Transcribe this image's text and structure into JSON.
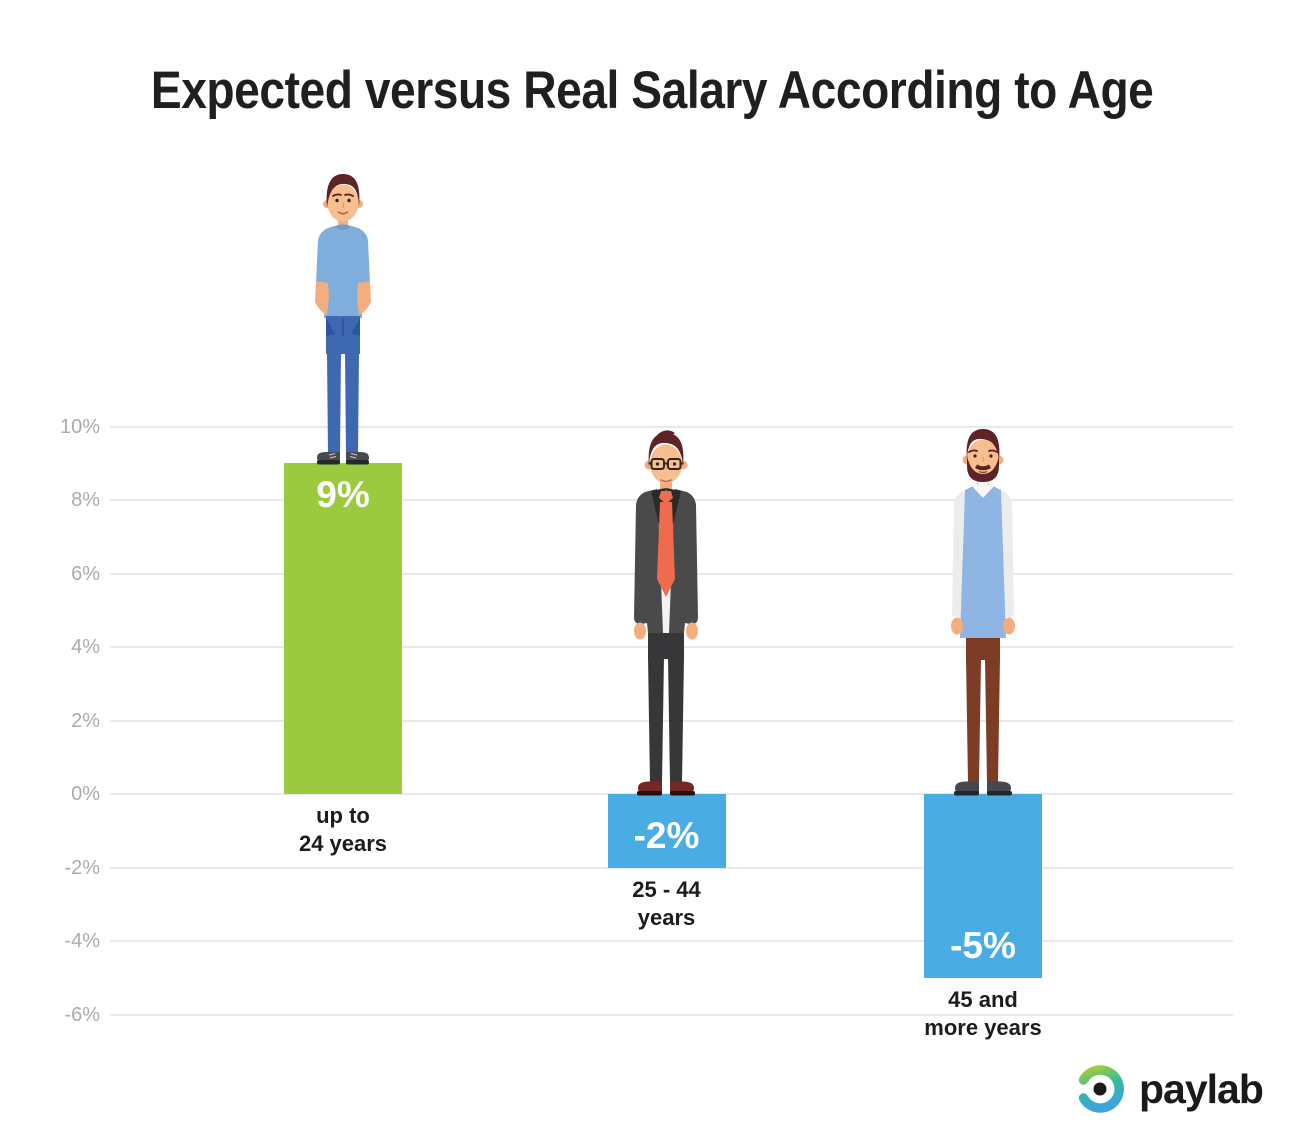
{
  "title": "Expected versus Real Salary According to Age",
  "chart_data": {
    "type": "bar",
    "title": "Expected versus Real Salary According to Age",
    "categories": [
      "up to 24 years",
      "25 - 44 years",
      "45 and more years"
    ],
    "category_lines": [
      [
        "up to",
        "24 years"
      ],
      [
        "25 - 44",
        "years"
      ],
      [
        "45 and",
        "more years"
      ]
    ],
    "values": [
      9,
      -2,
      -5
    ],
    "value_labels": [
      "9%",
      "-2%",
      "-5%"
    ],
    "unit": "%",
    "bar_colors": [
      "#9BCA3E",
      "#49ACE2",
      "#49ACE2"
    ],
    "yticks": [
      10,
      8,
      6,
      4,
      2,
      0,
      -2,
      -4,
      -6
    ],
    "ytick_labels": [
      "10%",
      "8%",
      "6%",
      "4%",
      "2%",
      "0%",
      "-2%",
      "-4%",
      "-6%"
    ],
    "ylim": [
      -7,
      11
    ],
    "grid": true,
    "legend": false
  },
  "illustrations": [
    {
      "name": "young-man-casual",
      "description": "young man in light blue t-shirt and jeans, hands in pockets, standing on green bar",
      "age_group": "up to 24 years"
    },
    {
      "name": "businessman-suit",
      "description": "man with glasses in dark grey suit, white shirt and orange tie, standing on zero line",
      "age_group": "25 - 44 years"
    },
    {
      "name": "older-man-vest",
      "description": "bearded man in light blue sweater vest, white sleeves and brown trousers, standing on zero line",
      "age_group": "45 and more years"
    }
  ],
  "logo": {
    "text": "paylab",
    "ring_colors": [
      "#A5CE36",
      "#2FB9A9",
      "#3FA4DC"
    ],
    "dot_color": "#1A1A1A"
  },
  "colors": {
    "positive_bar": "#9BCA3E",
    "negative_bar": "#49ACE2",
    "axis_label": "#ABABAB",
    "gridline": "#E9E9E9",
    "title_text": "#1F1F1F",
    "bar_value_text": "#FFFFFF",
    "category_text": "#1C1C1C"
  }
}
